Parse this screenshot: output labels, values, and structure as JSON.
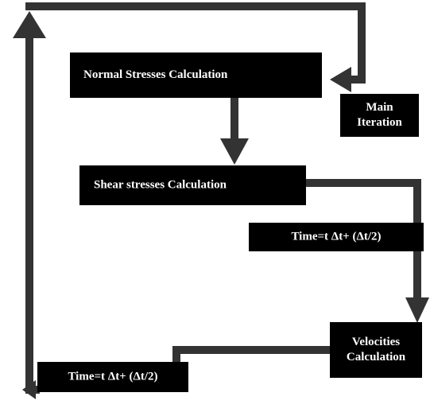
{
  "nodes": [
    {
      "lines": [
        "Normal Stresses Calculation"
      ]
    },
    {
      "lines": [
        "Main",
        "Iteration"
      ]
    },
    {
      "lines": [
        "Shear stresses Calculation"
      ]
    },
    {
      "lines": [
        "Time=t Δt+ (Δt/2)"
      ]
    },
    {
      "lines": [
        "Velocities",
        "Calculation"
      ]
    },
    {
      "lines": [
        "Time=t Δt+ (Δt/2)"
      ]
    }
  ]
}
